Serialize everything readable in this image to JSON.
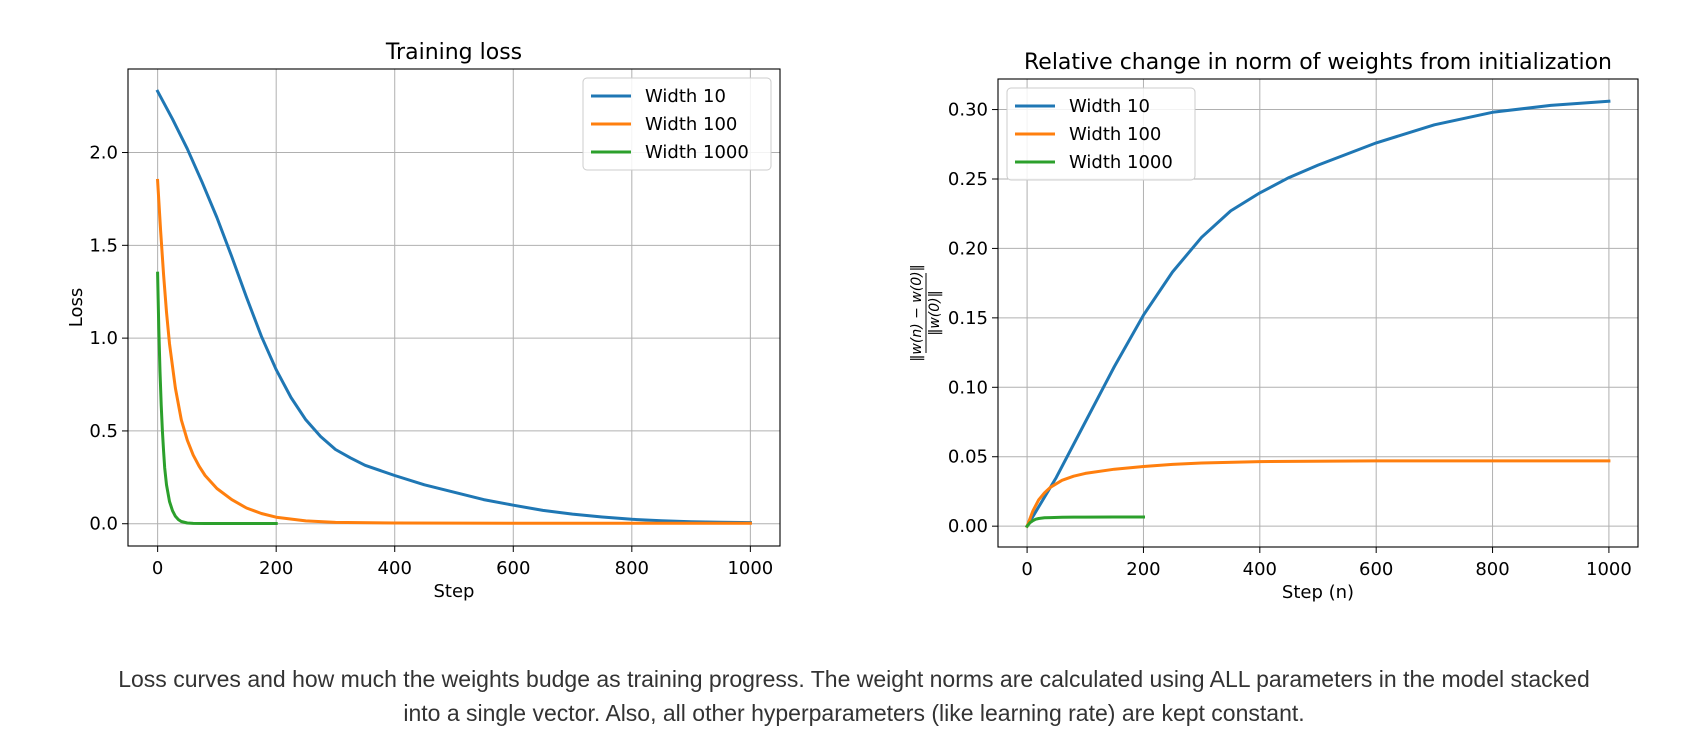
{
  "colors": {
    "w10": "#1f77b4",
    "w100": "#ff7f0e",
    "w1000": "#2ca02c",
    "grid": "#b0b0b0",
    "text": "#000000"
  },
  "caption": {
    "line1": "Loss curves and how much the weights budge as training progress. The weight norms are calculated using ALL parameters in the model stacked",
    "line2": "into a single vector. Also, all other hyperparameters (like learning rate) are kept constant."
  },
  "chart_data": [
    {
      "type": "line",
      "title": "Training loss",
      "xlabel": "Step",
      "ylabel": "Loss",
      "xlim": [
        -50,
        1050
      ],
      "ylim": [
        -0.12,
        2.45
      ],
      "xticks": [
        0,
        200,
        400,
        600,
        800,
        1000
      ],
      "xtick_labels": [
        "0",
        "200",
        "400",
        "600",
        "800",
        "1000"
      ],
      "yticks": [
        0.0,
        0.5,
        1.0,
        1.5,
        2.0
      ],
      "ytick_labels": [
        "0.0",
        "0.5",
        "1.0",
        "1.5",
        "2.0"
      ],
      "grid": true,
      "legend_position": "top-right",
      "series": [
        {
          "name": "Width 10",
          "color_key": "w10",
          "x": [
            0,
            25,
            50,
            75,
            100,
            125,
            150,
            175,
            200,
            225,
            250,
            275,
            300,
            325,
            350,
            400,
            450,
            500,
            550,
            600,
            650,
            700,
            750,
            800,
            850,
            900,
            950,
            1000
          ],
          "y": [
            2.33,
            2.18,
            2.02,
            1.84,
            1.65,
            1.44,
            1.22,
            1.01,
            0.83,
            0.68,
            0.56,
            0.47,
            0.4,
            0.355,
            0.315,
            0.26,
            0.21,
            0.17,
            0.13,
            0.1,
            0.072,
            0.052,
            0.036,
            0.024,
            0.016,
            0.011,
            0.008,
            0.006
          ]
        },
        {
          "name": "Width 100",
          "color_key": "w100",
          "x": [
            0,
            5,
            10,
            15,
            20,
            30,
            40,
            50,
            60,
            70,
            80,
            100,
            125,
            150,
            175,
            200,
            250,
            300,
            400,
            600,
            800,
            1000
          ],
          "y": [
            1.85,
            1.58,
            1.34,
            1.14,
            0.97,
            0.73,
            0.56,
            0.45,
            0.37,
            0.31,
            0.26,
            0.19,
            0.13,
            0.085,
            0.055,
            0.035,
            0.015,
            0.007,
            0.004,
            0.003,
            0.003,
            0.003
          ]
        },
        {
          "name": "Width 1000",
          "color_key": "w1000",
          "x": [
            0,
            2,
            4,
            6,
            8,
            10,
            12,
            15,
            20,
            25,
            30,
            35,
            40,
            50,
            60,
            80,
            100,
            150,
            200
          ],
          "y": [
            1.35,
            1.05,
            0.82,
            0.64,
            0.5,
            0.39,
            0.3,
            0.21,
            0.12,
            0.07,
            0.04,
            0.022,
            0.012,
            0.004,
            0.002,
            0.001,
            0.001,
            0.001,
            0.001
          ]
        }
      ]
    },
    {
      "type": "line",
      "title": "Relative change in norm of weights from initialization",
      "xlabel": "Step (n)",
      "ylabel": "‖w(n) − w(0)‖ / ‖w(0)‖",
      "xlim": [
        -50,
        1050
      ],
      "ylim": [
        -0.015,
        0.322
      ],
      "xticks": [
        0,
        200,
        400,
        600,
        800,
        1000
      ],
      "xtick_labels": [
        "0",
        "200",
        "400",
        "600",
        "800",
        "1000"
      ],
      "yticks": [
        0.0,
        0.05,
        0.1,
        0.15,
        0.2,
        0.25,
        0.3
      ],
      "ytick_labels": [
        "0.00",
        "0.05",
        "0.10",
        "0.15",
        "0.20",
        "0.25",
        "0.30"
      ],
      "grid": true,
      "legend_position": "top-left",
      "series": [
        {
          "name": "Width 10",
          "color_key": "w10",
          "x": [
            0,
            50,
            100,
            150,
            200,
            250,
            300,
            350,
            400,
            450,
            500,
            600,
            700,
            800,
            900,
            1000
          ],
          "y": [
            0.0,
            0.035,
            0.075,
            0.115,
            0.152,
            0.183,
            0.208,
            0.227,
            0.24,
            0.251,
            0.26,
            0.276,
            0.289,
            0.298,
            0.303,
            0.306
          ]
        },
        {
          "name": "Width 100",
          "color_key": "w100",
          "x": [
            0,
            10,
            20,
            30,
            40,
            60,
            80,
            100,
            150,
            200,
            250,
            300,
            400,
            600,
            800,
            1000
          ],
          "y": [
            0.0,
            0.011,
            0.019,
            0.024,
            0.028,
            0.033,
            0.036,
            0.038,
            0.041,
            0.043,
            0.0445,
            0.0455,
            0.0465,
            0.047,
            0.047,
            0.047
          ]
        },
        {
          "name": "Width 1000",
          "color_key": "w1000",
          "x": [
            0,
            5,
            10,
            15,
            20,
            30,
            40,
            60,
            80,
            100,
            150,
            200
          ],
          "y": [
            0.0,
            0.0025,
            0.004,
            0.005,
            0.0055,
            0.006,
            0.0062,
            0.0064,
            0.0065,
            0.0065,
            0.0066,
            0.0066
          ]
        }
      ]
    }
  ]
}
